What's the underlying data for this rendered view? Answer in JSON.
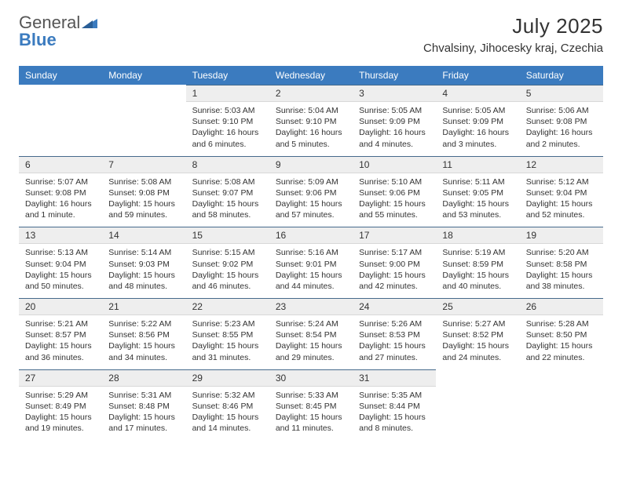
{
  "brand": {
    "word1": "General",
    "word2": "Blue"
  },
  "title": {
    "month": "July 2025",
    "location": "Chvalsiny, Jihocesky kraj, Czechia"
  },
  "colors": {
    "header_bg": "#3b7bbf",
    "header_text": "#ffffff",
    "daynum_bg": "#eeeeee",
    "rule": "#466a8c"
  },
  "weekdays": [
    "Sunday",
    "Monday",
    "Tuesday",
    "Wednesday",
    "Thursday",
    "Friday",
    "Saturday"
  ],
  "weeks": [
    [
      {
        "n": "",
        "lines": []
      },
      {
        "n": "",
        "lines": []
      },
      {
        "n": "1",
        "lines": [
          "Sunrise: 5:03 AM",
          "Sunset: 9:10 PM",
          "Daylight: 16 hours",
          "and 6 minutes."
        ]
      },
      {
        "n": "2",
        "lines": [
          "Sunrise: 5:04 AM",
          "Sunset: 9:10 PM",
          "Daylight: 16 hours",
          "and 5 minutes."
        ]
      },
      {
        "n": "3",
        "lines": [
          "Sunrise: 5:05 AM",
          "Sunset: 9:09 PM",
          "Daylight: 16 hours",
          "and 4 minutes."
        ]
      },
      {
        "n": "4",
        "lines": [
          "Sunrise: 5:05 AM",
          "Sunset: 9:09 PM",
          "Daylight: 16 hours",
          "and 3 minutes."
        ]
      },
      {
        "n": "5",
        "lines": [
          "Sunrise: 5:06 AM",
          "Sunset: 9:08 PM",
          "Daylight: 16 hours",
          "and 2 minutes."
        ]
      }
    ],
    [
      {
        "n": "6",
        "lines": [
          "Sunrise: 5:07 AM",
          "Sunset: 9:08 PM",
          "Daylight: 16 hours",
          "and 1 minute."
        ]
      },
      {
        "n": "7",
        "lines": [
          "Sunrise: 5:08 AM",
          "Sunset: 9:08 PM",
          "Daylight: 15 hours",
          "and 59 minutes."
        ]
      },
      {
        "n": "8",
        "lines": [
          "Sunrise: 5:08 AM",
          "Sunset: 9:07 PM",
          "Daylight: 15 hours",
          "and 58 minutes."
        ]
      },
      {
        "n": "9",
        "lines": [
          "Sunrise: 5:09 AM",
          "Sunset: 9:06 PM",
          "Daylight: 15 hours",
          "and 57 minutes."
        ]
      },
      {
        "n": "10",
        "lines": [
          "Sunrise: 5:10 AM",
          "Sunset: 9:06 PM",
          "Daylight: 15 hours",
          "and 55 minutes."
        ]
      },
      {
        "n": "11",
        "lines": [
          "Sunrise: 5:11 AM",
          "Sunset: 9:05 PM",
          "Daylight: 15 hours",
          "and 53 minutes."
        ]
      },
      {
        "n": "12",
        "lines": [
          "Sunrise: 5:12 AM",
          "Sunset: 9:04 PM",
          "Daylight: 15 hours",
          "and 52 minutes."
        ]
      }
    ],
    [
      {
        "n": "13",
        "lines": [
          "Sunrise: 5:13 AM",
          "Sunset: 9:04 PM",
          "Daylight: 15 hours",
          "and 50 minutes."
        ]
      },
      {
        "n": "14",
        "lines": [
          "Sunrise: 5:14 AM",
          "Sunset: 9:03 PM",
          "Daylight: 15 hours",
          "and 48 minutes."
        ]
      },
      {
        "n": "15",
        "lines": [
          "Sunrise: 5:15 AM",
          "Sunset: 9:02 PM",
          "Daylight: 15 hours",
          "and 46 minutes."
        ]
      },
      {
        "n": "16",
        "lines": [
          "Sunrise: 5:16 AM",
          "Sunset: 9:01 PM",
          "Daylight: 15 hours",
          "and 44 minutes."
        ]
      },
      {
        "n": "17",
        "lines": [
          "Sunrise: 5:17 AM",
          "Sunset: 9:00 PM",
          "Daylight: 15 hours",
          "and 42 minutes."
        ]
      },
      {
        "n": "18",
        "lines": [
          "Sunrise: 5:19 AM",
          "Sunset: 8:59 PM",
          "Daylight: 15 hours",
          "and 40 minutes."
        ]
      },
      {
        "n": "19",
        "lines": [
          "Sunrise: 5:20 AM",
          "Sunset: 8:58 PM",
          "Daylight: 15 hours",
          "and 38 minutes."
        ]
      }
    ],
    [
      {
        "n": "20",
        "lines": [
          "Sunrise: 5:21 AM",
          "Sunset: 8:57 PM",
          "Daylight: 15 hours",
          "and 36 minutes."
        ]
      },
      {
        "n": "21",
        "lines": [
          "Sunrise: 5:22 AM",
          "Sunset: 8:56 PM",
          "Daylight: 15 hours",
          "and 34 minutes."
        ]
      },
      {
        "n": "22",
        "lines": [
          "Sunrise: 5:23 AM",
          "Sunset: 8:55 PM",
          "Daylight: 15 hours",
          "and 31 minutes."
        ]
      },
      {
        "n": "23",
        "lines": [
          "Sunrise: 5:24 AM",
          "Sunset: 8:54 PM",
          "Daylight: 15 hours",
          "and 29 minutes."
        ]
      },
      {
        "n": "24",
        "lines": [
          "Sunrise: 5:26 AM",
          "Sunset: 8:53 PM",
          "Daylight: 15 hours",
          "and 27 minutes."
        ]
      },
      {
        "n": "25",
        "lines": [
          "Sunrise: 5:27 AM",
          "Sunset: 8:52 PM",
          "Daylight: 15 hours",
          "and 24 minutes."
        ]
      },
      {
        "n": "26",
        "lines": [
          "Sunrise: 5:28 AM",
          "Sunset: 8:50 PM",
          "Daylight: 15 hours",
          "and 22 minutes."
        ]
      }
    ],
    [
      {
        "n": "27",
        "lines": [
          "Sunrise: 5:29 AM",
          "Sunset: 8:49 PM",
          "Daylight: 15 hours",
          "and 19 minutes."
        ]
      },
      {
        "n": "28",
        "lines": [
          "Sunrise: 5:31 AM",
          "Sunset: 8:48 PM",
          "Daylight: 15 hours",
          "and 17 minutes."
        ]
      },
      {
        "n": "29",
        "lines": [
          "Sunrise: 5:32 AM",
          "Sunset: 8:46 PM",
          "Daylight: 15 hours",
          "and 14 minutes."
        ]
      },
      {
        "n": "30",
        "lines": [
          "Sunrise: 5:33 AM",
          "Sunset: 8:45 PM",
          "Daylight: 15 hours",
          "and 11 minutes."
        ]
      },
      {
        "n": "31",
        "lines": [
          "Sunrise: 5:35 AM",
          "Sunset: 8:44 PM",
          "Daylight: 15 hours",
          "and 8 minutes."
        ]
      },
      {
        "n": "",
        "lines": []
      },
      {
        "n": "",
        "lines": []
      }
    ]
  ]
}
